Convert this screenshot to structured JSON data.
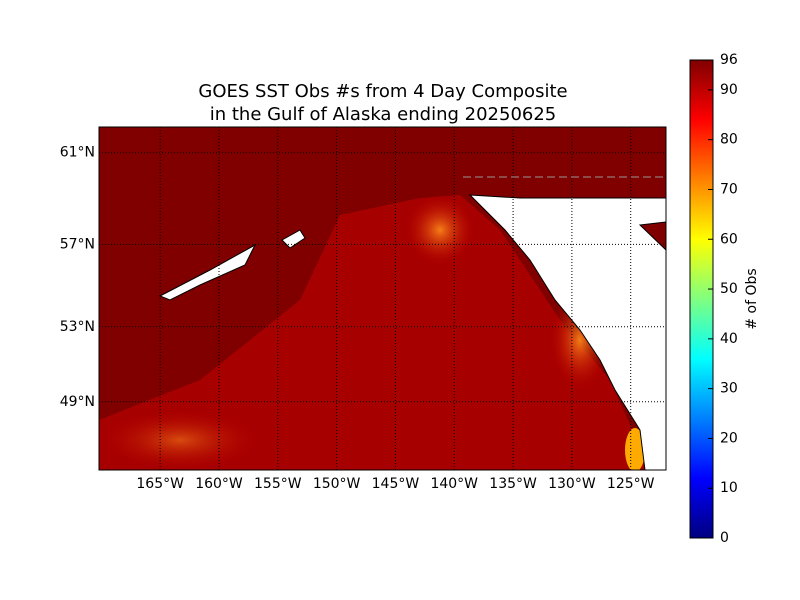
{
  "chart_data": {
    "type": "map",
    "title": [
      "GOES SST Obs #s from 4 Day Composite",
      "in the Gulf of Alaska ending 20250625"
    ],
    "projection": "mercator",
    "xlim": [
      -170.2,
      -122.0
    ],
    "ylim": [
      45.06,
      62.04
    ],
    "xticks": [
      {
        "value": -165,
        "label": "165°W"
      },
      {
        "value": -160,
        "label": "160°W"
      },
      {
        "value": -155,
        "label": "155°W"
      },
      {
        "value": -150,
        "label": "150°W"
      },
      {
        "value": -145,
        "label": "145°W"
      },
      {
        "value": -140,
        "label": "140°W"
      },
      {
        "value": -135,
        "label": "135°W"
      },
      {
        "value": -130,
        "label": "130°W"
      },
      {
        "value": -125,
        "label": "125°W"
      }
    ],
    "yticks": [
      {
        "value": 61,
        "label": "61°N"
      },
      {
        "value": 57,
        "label": "57°N"
      },
      {
        "value": 53,
        "label": "53°N"
      },
      {
        "value": 49,
        "label": "49°N"
      }
    ],
    "grid": true,
    "colorbar": {
      "label": "# of Obs",
      "colormap": "jet",
      "clim": [
        0,
        96
      ],
      "ticks": [
        0,
        10,
        20,
        30,
        40,
        50,
        60,
        70,
        80,
        90,
        96
      ]
    }
  }
}
